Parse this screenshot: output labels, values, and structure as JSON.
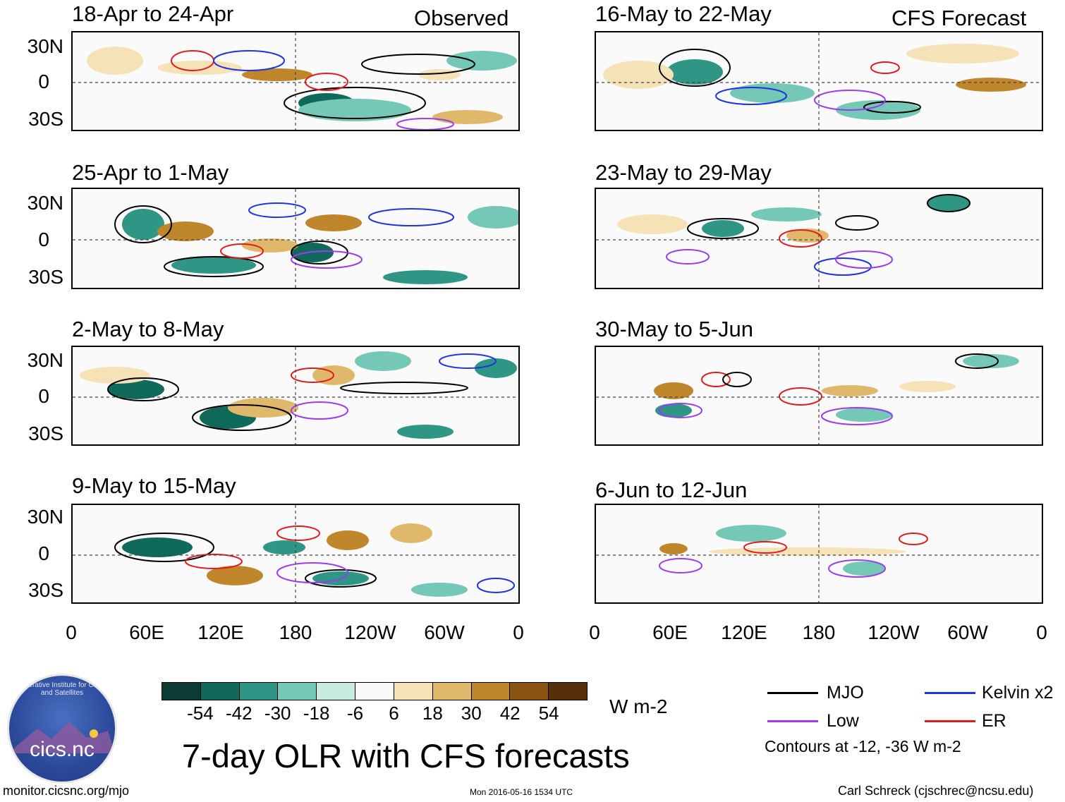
{
  "observed_label": "Observed",
  "forecast_label": "CFS Forecast",
  "panels_left": [
    {
      "title": "18-Apr to 24-Apr"
    },
    {
      "title": "25-Apr to 1-May"
    },
    {
      "title": "2-May to 8-May"
    },
    {
      "title": "9-May to 15-May"
    }
  ],
  "panels_right": [
    {
      "title": "16-May to 22-May"
    },
    {
      "title": "23-May to 29-May"
    },
    {
      "title": "30-May to 5-Jun"
    },
    {
      "title": "6-Jun to 12-Jun"
    }
  ],
  "lat_ticks": [
    "30N",
    "0",
    "30S"
  ],
  "lon_ticks": [
    "0",
    "60E",
    "120E",
    "180",
    "120W",
    "60W",
    "0"
  ],
  "colorbar": {
    "labels": [
      "-54",
      "-42",
      "-30",
      "-18",
      "-6",
      "6",
      "18",
      "30",
      "42",
      "54"
    ],
    "colors": [
      "#0b3b33",
      "#0f6a5c",
      "#2f9584",
      "#75c8b5",
      "#c8ebe1",
      "#fafafa",
      "#f5e2b6",
      "#e0b86c",
      "#c0862c",
      "#8a5311",
      "#55300a"
    ],
    "unit": "W m-2"
  },
  "legend": {
    "mjo": {
      "label": "MJO",
      "color": "#000000"
    },
    "kelvin": {
      "label": "Kelvin x2",
      "color": "#1f33e0"
    },
    "low": {
      "label": "Low",
      "color": "#9b3cf0"
    },
    "er": {
      "label": "ER",
      "color": "#e01b1b"
    },
    "contours_note": "Contours at -12, -36 W m-2"
  },
  "title": "7-day OLR with CFS forecasts",
  "logo_text": "cics.nc",
  "logo_ring": "Cooperative Institute for Climate and Satellites",
  "footer": {
    "url": "monitor.cicsnc.org/mjo",
    "timestamp": "Mon 2016-05-16 1534 UTC",
    "author": "Carl Schreck (cjschrec@ncsu.edu)"
  }
}
